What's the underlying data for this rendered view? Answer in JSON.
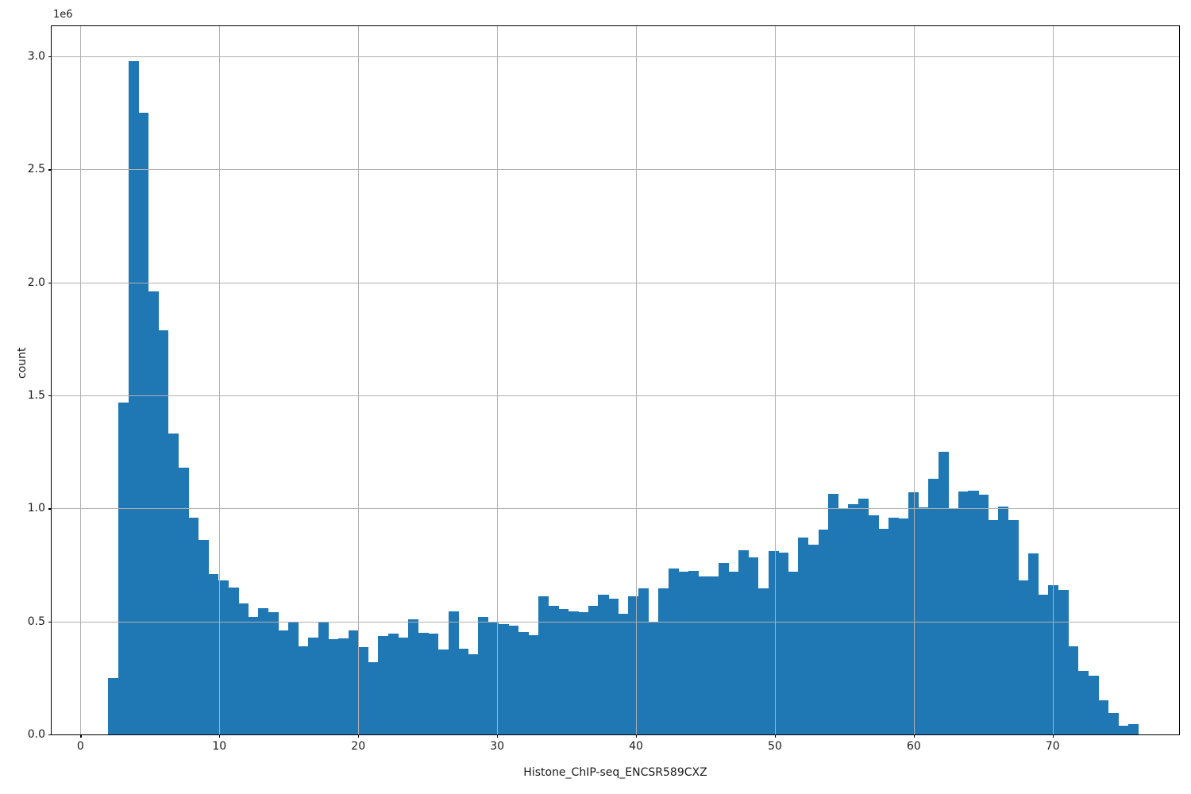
{
  "figure": {
    "background": "#ffffff",
    "chart_data": {
      "type": "bar",
      "subtype": "histogram",
      "title": "",
      "xlabel": "Histone_ChIP-seq_ENCSR589CXZ",
      "ylabel": "count",
      "y_offset_label": "1e6",
      "bar_color": "#1f77b4",
      "grid": true,
      "grid_color": "#b0b0b0",
      "frame_color": "#000000",
      "legend": "none",
      "bin_start": 2.0,
      "bin_width": 0.72,
      "counts": [
        248000,
        1470000,
        2980000,
        2750000,
        1960000,
        1790000,
        1330000,
        1180000,
        960000,
        860000,
        710000,
        680000,
        650000,
        580000,
        520000,
        560000,
        540000,
        460000,
        500000,
        390000,
        430000,
        500000,
        420000,
        425000,
        460000,
        385000,
        320000,
        435000,
        445000,
        430000,
        510000,
        450000,
        445000,
        375000,
        545000,
        380000,
        355000,
        520000,
        500000,
        490000,
        480000,
        455000,
        440000,
        610000,
        570000,
        555000,
        545000,
        540000,
        570000,
        620000,
        600000,
        535000,
        610000,
        645000,
        500000,
        645000,
        735000,
        720000,
        725000,
        700000,
        700000,
        760000,
        720000,
        815000,
        785000,
        645000,
        810000,
        805000,
        720000,
        870000,
        840000,
        905000,
        1065000,
        1000000,
        1020000,
        1045000,
        970000,
        910000,
        960000,
        955000,
        1070000,
        1005000,
        1130000,
        1250000,
        1000000,
        1075000,
        1080000,
        1060000,
        950000,
        1010000,
        950000,
        680000,
        800000,
        620000,
        660000,
        640000,
        390000,
        280000,
        260000,
        150000,
        95000,
        40000,
        45000
      ],
      "xlim": [
        -2.08,
        79.1
      ],
      "ylim": [
        0,
        3134000
      ],
      "xticks": [
        0,
        10,
        20,
        30,
        40,
        50,
        60,
        70
      ],
      "xtick_labels": [
        "0",
        "10",
        "20",
        "30",
        "40",
        "50",
        "60",
        "70"
      ],
      "yticks": [
        0,
        500000,
        1000000,
        1500000,
        2000000,
        2500000,
        3000000
      ],
      "ytick_labels": [
        "0.0",
        "0.5",
        "1.0",
        "1.5",
        "2.0",
        "2.5",
        "3.0"
      ]
    }
  }
}
